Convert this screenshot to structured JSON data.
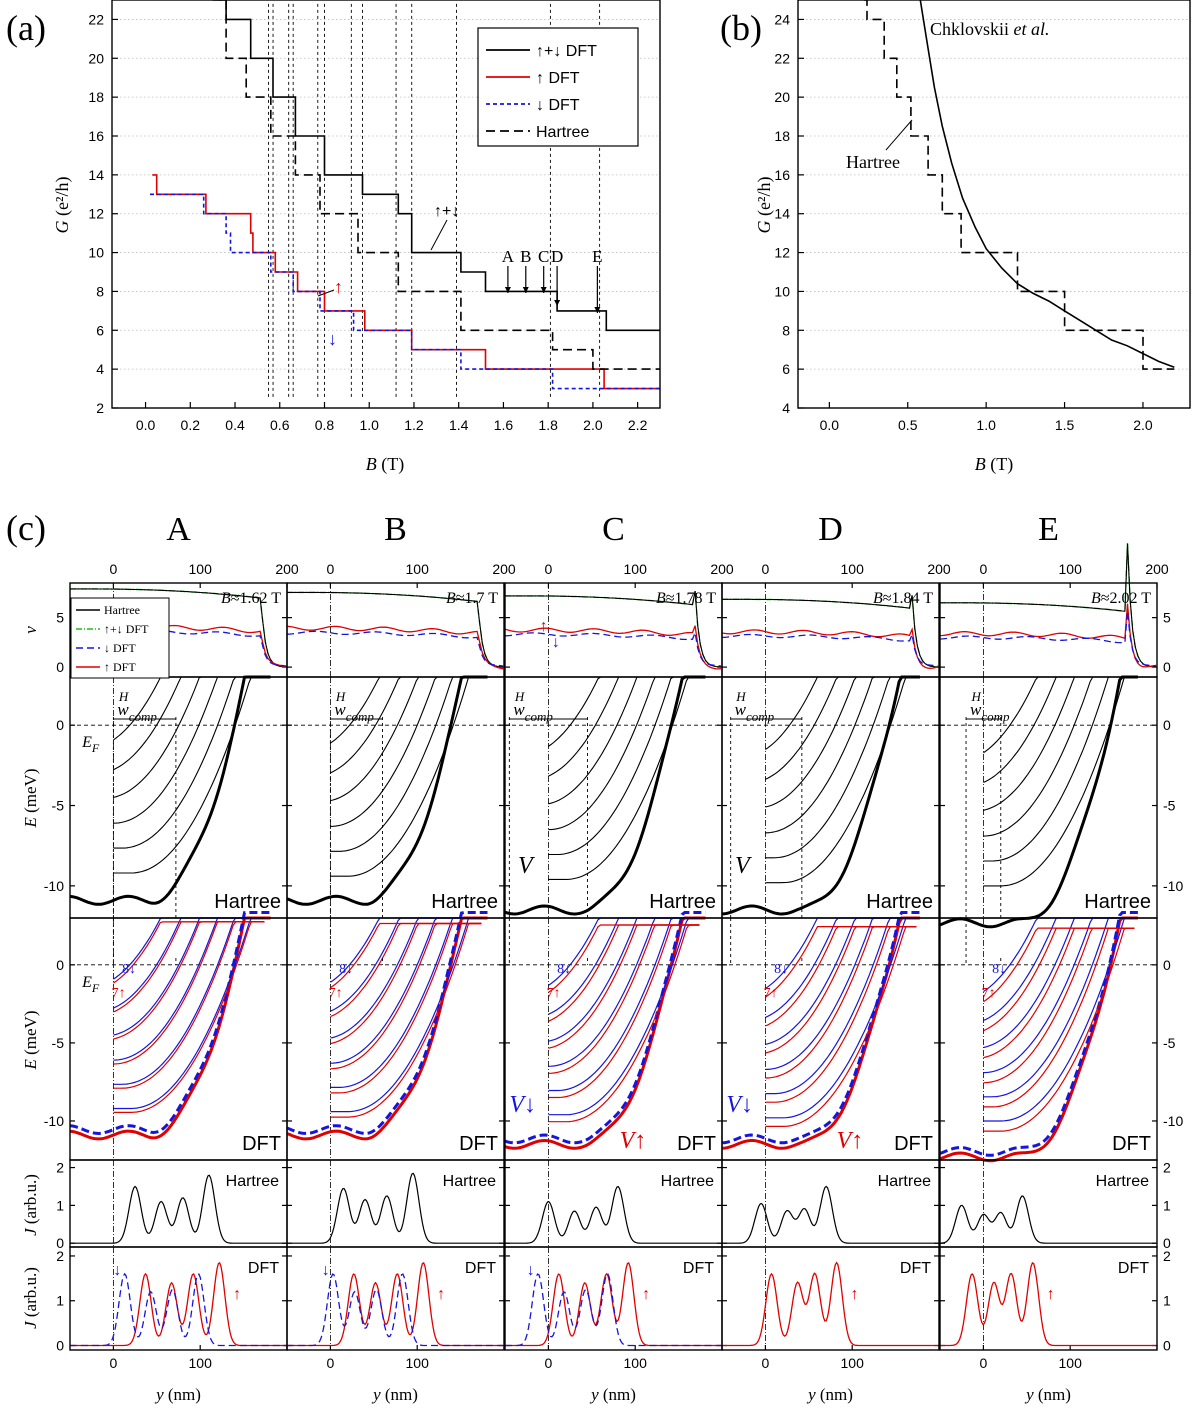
{
  "panel_labels": {
    "a": "(a)",
    "b": "(b)",
    "c": "(c)"
  },
  "colors": {
    "black": "#000000",
    "red": "#e00000",
    "blue": "#1515e0",
    "green": "#18c018"
  },
  "chart_data": [
    {
      "id": "a",
      "type": "line",
      "xlabel_var": "B",
      "xlabel_unit": " (T)",
      "ylabel_var": "G",
      "ylabel_unit": " (e²/h)",
      "xlim": [
        -0.15,
        2.3
      ],
      "ylim": [
        2,
        23
      ],
      "xticks": [
        0.0,
        0.2,
        0.4,
        0.6,
        0.8,
        1.0,
        1.2,
        1.4,
        1.6,
        1.8,
        2.0,
        2.2
      ],
      "yticks": [
        2,
        4,
        6,
        8,
        10,
        12,
        14,
        16,
        18,
        20,
        22
      ],
      "grid": true,
      "legend": {
        "position": "top-right",
        "entries": [
          "↑+↓ DFT",
          "↑ DFT",
          "↓ DFT",
          "Hartree"
        ]
      },
      "series": [
        {
          "name": "↑+↓ DFT",
          "color": "#000000",
          "dash": "solid",
          "steps": [
            [
              0.33,
              23
            ],
            [
              0.36,
              22
            ],
            [
              0.47,
              20
            ],
            [
              0.57,
              18
            ],
            [
              0.67,
              16
            ],
            [
              0.8,
              14
            ],
            [
              0.97,
              13
            ],
            [
              1.13,
              12
            ],
            [
              1.19,
              11
            ],
            [
              1.19,
              10
            ],
            [
              1.41,
              9
            ],
            [
              1.52,
              8
            ],
            [
              1.84,
              7
            ],
            [
              2.06,
              6
            ],
            [
              2.3,
              6
            ]
          ]
        },
        {
          "name": "↑ DFT",
          "color": "#e00000",
          "dash": "solid",
          "steps": [
            [
              0.03,
              14
            ],
            [
              0.05,
              13
            ],
            [
              0.27,
              12
            ],
            [
              0.47,
              11
            ],
            [
              0.48,
              10
            ],
            [
              0.58,
              9
            ],
            [
              0.68,
              8
            ],
            [
              0.8,
              7
            ],
            [
              0.98,
              6
            ],
            [
              1.19,
              5
            ],
            [
              1.52,
              4
            ],
            [
              2.05,
              3
            ],
            [
              2.3,
              3
            ]
          ]
        },
        {
          "name": "↓ DFT",
          "color": "#1515e0",
          "dash": "dashed",
          "steps": [
            [
              0.02,
              13
            ],
            [
              0.26,
              12
            ],
            [
              0.36,
              11
            ],
            [
              0.38,
              10
            ],
            [
              0.56,
              9
            ],
            [
              0.66,
              8
            ],
            [
              0.78,
              7
            ],
            [
              0.93,
              6
            ],
            [
              1.19,
              5
            ],
            [
              1.41,
              4
            ],
            [
              1.82,
              3
            ],
            [
              2.3,
              3
            ]
          ]
        },
        {
          "name": "Hartree",
          "color": "#000000",
          "dash": "longdash",
          "steps": [
            [
              0.3,
              23
            ],
            [
              0.36,
              20
            ],
            [
              0.45,
              18
            ],
            [
              0.56,
              16
            ],
            [
              0.67,
              14
            ],
            [
              0.78,
              12
            ],
            [
              0.95,
              10
            ],
            [
              1.13,
              8
            ],
            [
              1.41,
              6
            ],
            [
              1.82,
              5
            ],
            [
              2.0,
              4
            ],
            [
              2.3,
              4
            ]
          ]
        }
      ],
      "vlines": [
        0.55,
        0.57,
        0.64,
        0.66,
        0.77,
        0.8,
        0.92,
        0.97,
        1.12,
        1.19,
        1.39,
        1.81,
        2.03
      ],
      "annotations": {
        "sum_arrow": "↑+↓",
        "up_arrow": "↑",
        "down_arrow": "↓",
        "points": [
          {
            "label": "A",
            "x": 1.62
          },
          {
            "label": "B",
            "x": 1.7
          },
          {
            "label": "C",
            "x": 1.78
          },
          {
            "label": "D",
            "x": 1.84
          },
          {
            "label": "E",
            "x": 2.02
          }
        ]
      }
    },
    {
      "id": "b",
      "type": "line",
      "xlabel_var": "B",
      "xlabel_unit": " (T)",
      "ylabel_var": "G",
      "ylabel_unit": " (e²/h)",
      "xlim": [
        -0.2,
        2.3
      ],
      "ylim": [
        4,
        25
      ],
      "xticks": [
        0.0,
        0.5,
        1.0,
        1.5,
        2.0
      ],
      "yticks": [
        4,
        6,
        8,
        10,
        12,
        14,
        16,
        18,
        20,
        22,
        24
      ],
      "grid": true,
      "series": [
        {
          "name": "Chklovskii et al.",
          "color": "#000000",
          "dash": "solid",
          "x": [
            0.58,
            0.6,
            0.63,
            0.67,
            0.72,
            0.78,
            0.85,
            0.93,
            1.0,
            1.1,
            1.2,
            1.3,
            1.4,
            1.5,
            1.6,
            1.7,
            1.8,
            1.9,
            2.0,
            2.1,
            2.2
          ],
          "y": [
            25,
            24,
            22.5,
            20.5,
            18.5,
            16.6,
            14.8,
            13.3,
            12.2,
            11.2,
            10.4,
            9.9,
            9.5,
            9.0,
            8.5,
            8.0,
            7.5,
            7.2,
            6.8,
            6.4,
            6.1
          ]
        },
        {
          "name": "Hartree",
          "color": "#000000",
          "dash": "longdash",
          "steps": [
            [
              0.22,
              25
            ],
            [
              0.24,
              24
            ],
            [
              0.35,
              22
            ],
            [
              0.43,
              20
            ],
            [
              0.52,
              18
            ],
            [
              0.63,
              16
            ],
            [
              0.72,
              14
            ],
            [
              0.84,
              12
            ],
            [
              1.0,
              12
            ],
            [
              1.2,
              10
            ],
            [
              1.5,
              8
            ],
            [
              2.0,
              6
            ],
            [
              2.2,
              6
            ]
          ]
        }
      ],
      "annotations": {
        "curve_label_prefix": "Chklovskii ",
        "curve_label_italic": "et al.",
        "hartree_label": "Hartree"
      }
    },
    {
      "id": "c",
      "type": "line",
      "columns": [
        {
          "label": "A",
          "B_label": "B≈1.62 T",
          "wcomp": [
            0,
            72
          ]
        },
        {
          "label": "B",
          "B_label": "B≈1.7 T",
          "wcomp": [
            0,
            60
          ]
        },
        {
          "label": "C",
          "B_label": "B≈1.78 T",
          "wcomp": [
            -45,
            45
          ]
        },
        {
          "label": "D",
          "B_label": "B≈1.84 T",
          "wcomp": [
            -40,
            42
          ]
        },
        {
          "label": "E",
          "B_label": "B≈2.02 T",
          "wcomp": [
            -20,
            20
          ]
        }
      ],
      "x_range": [
        -50,
        200
      ],
      "xticks": [
        0,
        100,
        200
      ],
      "rows": [
        {
          "name": "nu",
          "ylabel": "ν",
          "ylim": [
            -1,
            8.5
          ],
          "yticks": [
            0,
            5
          ]
        },
        {
          "name": "E_hartree",
          "ylabel": "E (meV)",
          "ylim": [
            -12,
            3
          ],
          "yticks": [
            -10,
            -5,
            0
          ],
          "tag": "Hartree"
        },
        {
          "name": "E_dft",
          "ylabel": "E (meV)",
          "ylim": [
            -12.5,
            3
          ],
          "yticks": [
            -10,
            -5,
            0
          ],
          "tag": "DFT"
        },
        {
          "name": "J_hartree",
          "ylabel": "J (arb.u.)",
          "ylim": [
            -0.1,
            2.2
          ],
          "yticks": [
            0,
            1,
            2
          ],
          "tag": "Hartree"
        },
        {
          "name": "J_dft",
          "ylabel": "J (arb.u.)",
          "ylim": [
            -0.1,
            2.2
          ],
          "yticks": [
            0,
            1,
            2
          ],
          "tag": "DFT"
        }
      ],
      "legend": [
        "Hartree",
        "↑+↓ DFT",
        "↓ DFT",
        "↑ DFT"
      ],
      "xlabel_var": "y",
      "xlabel_unit": " (nm)",
      "labels": {
        "EF_main": "E",
        "EF_sub": "F",
        "wcomp_main": "w",
        "wcomp_sub": "comp",
        "wcomp_sup": "H",
        "V": "V",
        "V_up": "V↑",
        "V_down": "V↓",
        "level8": "8↓",
        "level7": "7↑",
        "up": "↑",
        "down": "↓"
      }
    }
  ]
}
